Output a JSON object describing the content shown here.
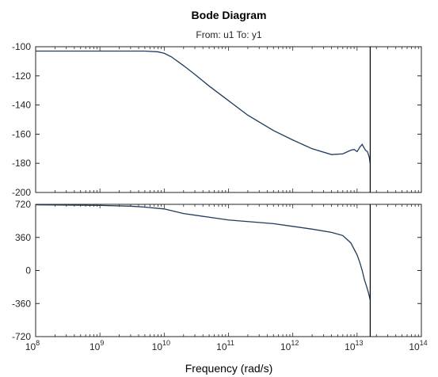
{
  "chart_data": {
    "type": "line",
    "title": "Bode Diagram",
    "subtitle": "From: u1  To: y1",
    "xlabel": "Frequency  (rad/s)",
    "x_scale": "log",
    "xlim": [
      100000000.0,
      100000000000000.0
    ],
    "x_ticks": [
      {
        "value": 100000000.0,
        "base": "10",
        "exp": "8"
      },
      {
        "value": 1000000000.0,
        "base": "10",
        "exp": "9"
      },
      {
        "value": 10000000000.0,
        "base": "10",
        "exp": "10"
      },
      {
        "value": 100000000000.0,
        "base": "10",
        "exp": "11"
      },
      {
        "value": 1000000000000.0,
        "base": "10",
        "exp": "12"
      },
      {
        "value": 10000000000000.0,
        "base": "10",
        "exp": "13"
      },
      {
        "value": 100000000000000.0,
        "base": "10",
        "exp": "14"
      }
    ],
    "grid": false,
    "line_color": "#1f3b5a",
    "vertical_line": {
      "x": 16000000000000.0,
      "color": "#000000"
    },
    "panels": [
      {
        "name": "magnitude",
        "ylim": [
          -200,
          -100
        ],
        "y_ticks": [
          -100,
          -120,
          -140,
          -160,
          -180,
          -200
        ],
        "x": [
          100000000.0,
          1000000000.0,
          5000000000.0,
          8000000000.0,
          10000000000.0,
          13000000000.0,
          20000000000.0,
          30000000000.0,
          50000000000.0,
          100000000000.0,
          200000000000.0,
          500000000000.0,
          1000000000000.0,
          2000000000000.0,
          4000000000000.0,
          6000000000000.0,
          8000000000000.0,
          9000000000000.0,
          10000000000000.0,
          11000000000000.0,
          12000000000000.0,
          13500000000000.0,
          14500000000000.0,
          15500000000000.0,
          16000000000000.0
        ],
        "y": [
          -103,
          -103,
          -103,
          -103.5,
          -104.5,
          -107,
          -113,
          -119,
          -127,
          -137,
          -147,
          -157.5,
          -164,
          -170,
          -174,
          -173.5,
          -171,
          -170.5,
          -172,
          -169,
          -167,
          -171,
          -172,
          -176,
          -180
        ]
      },
      {
        "name": "phase",
        "ylim": [
          -720,
          720
        ],
        "y_ticks": [
          720,
          360,
          0,
          -360,
          -720
        ],
        "x": [
          100000000.0,
          1000000000.0,
          3000000000.0,
          5000000000.0,
          10000000000.0,
          20000000000.0,
          50000000000.0,
          100000000000.0,
          500000000000.0,
          1000000000000.0,
          2000000000000.0,
          4000000000000.0,
          6000000000000.0,
          8000000000000.0,
          10000000000000.0,
          11000000000000.0,
          12000000000000.0,
          13000000000000.0,
          14000000000000.0,
          15000000000000.0,
          16000000000000.0
        ],
        "y": [
          715,
          708,
          700,
          690,
          670,
          620,
          580,
          550,
          510,
          480,
          450,
          415,
          380,
          300,
          170,
          90,
          0,
          -100,
          -170,
          -240,
          -320
        ]
      }
    ]
  }
}
